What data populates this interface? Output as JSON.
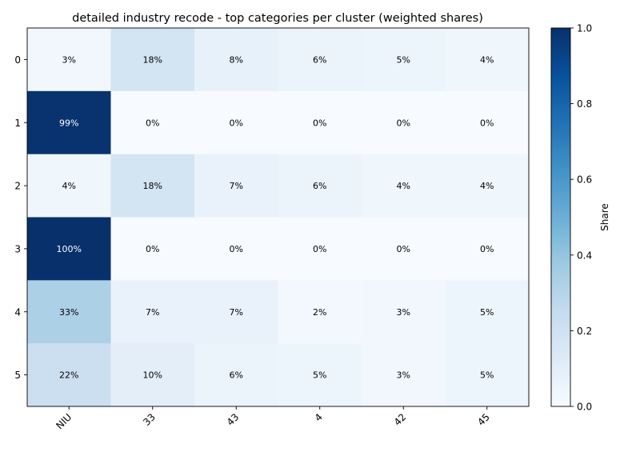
{
  "chart_data": {
    "type": "heatmap",
    "title": "detailed industry recode - top categories per cluster (weighted shares)",
    "xlabel": "",
    "ylabel": "",
    "x_categories": [
      "NIU",
      "33",
      "43",
      "4",
      "42",
      "45"
    ],
    "y_categories": [
      "0",
      "1",
      "2",
      "3",
      "4",
      "5"
    ],
    "values": [
      [
        0.03,
        0.18,
        0.08,
        0.06,
        0.05,
        0.04
      ],
      [
        0.99,
        0.0,
        0.0,
        0.0,
        0.0,
        0.0
      ],
      [
        0.04,
        0.18,
        0.07,
        0.06,
        0.04,
        0.04
      ],
      [
        1.0,
        0.0,
        0.0,
        0.0,
        0.0,
        0.0
      ],
      [
        0.33,
        0.07,
        0.07,
        0.02,
        0.03,
        0.05
      ],
      [
        0.22,
        0.1,
        0.06,
        0.05,
        0.03,
        0.05
      ]
    ],
    "cell_labels": [
      [
        "3%",
        "18%",
        "8%",
        "6%",
        "5%",
        "4%"
      ],
      [
        "99%",
        "0%",
        "0%",
        "0%",
        "0%",
        "0%"
      ],
      [
        "4%",
        "18%",
        "7%",
        "6%",
        "4%",
        "4%"
      ],
      [
        "100%",
        "0%",
        "0%",
        "0%",
        "0%",
        "0%"
      ],
      [
        "33%",
        "7%",
        "7%",
        "2%",
        "3%",
        "5%"
      ],
      [
        "22%",
        "10%",
        "6%",
        "5%",
        "3%",
        "5%"
      ]
    ],
    "colormap": "Blues",
    "color_range": [
      0,
      1
    ],
    "colorbar": {
      "label": "Share",
      "ticks": [
        0.0,
        0.2,
        0.4,
        0.6,
        0.8,
        1.0
      ],
      "tick_labels": [
        "0.0",
        "0.2",
        "0.4",
        "0.6",
        "0.8",
        "1.0"
      ]
    },
    "grid": false
  }
}
